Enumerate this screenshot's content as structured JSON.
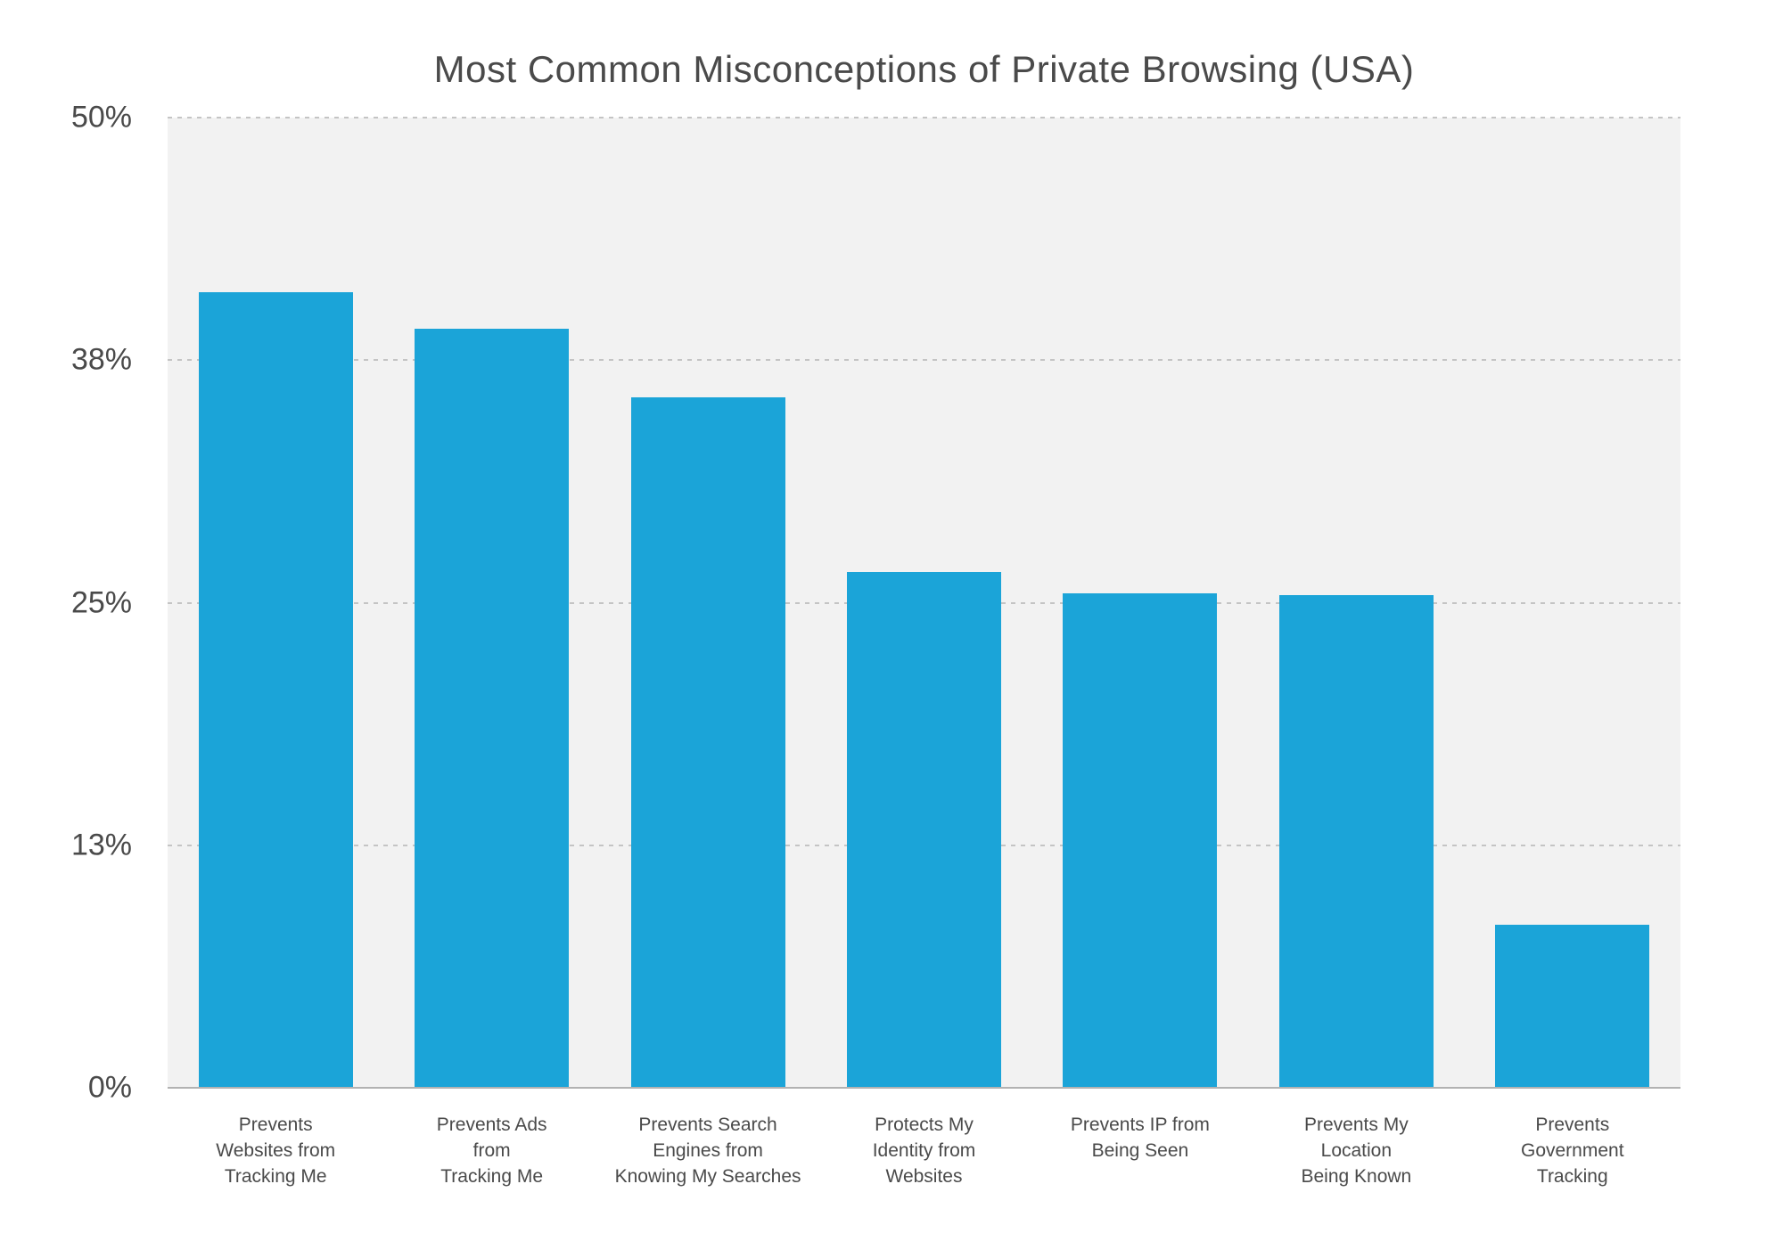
{
  "chart_data": {
    "type": "bar",
    "title": "Most Common Misconceptions of Private Browsing (USA)",
    "categories": [
      "Prevents Websites from Tracking Me",
      "Prevents Ads from Tracking Me",
      "Prevents Search Engines from Knowing My Searches",
      "Protects My Identity from Websites",
      "Prevents IP from Being Seen",
      "Prevents My Location Being Known",
      "Prevents Government Tracking"
    ],
    "category_lines": [
      [
        "Prevents",
        "Websites from",
        "Tracking Me"
      ],
      [
        "Prevents Ads",
        "from",
        "Tracking Me"
      ],
      [
        "Prevents Search",
        "Engines from",
        "Knowing My Searches"
      ],
      [
        "Protects My",
        "Identity from",
        "Websites"
      ],
      [
        "Prevents IP from",
        "Being Seen"
      ],
      [
        "Prevents My",
        "Location",
        "Being Known"
      ],
      [
        "Prevents",
        "Government",
        "Tracking"
      ]
    ],
    "values": [
      41.0,
      39.1,
      35.6,
      26.6,
      25.5,
      25.4,
      8.4
    ],
    "unit": "%",
    "xlabel": "",
    "ylabel": "",
    "ylim": [
      0,
      50
    ],
    "y_ticks": [
      {
        "label": "50%",
        "value": 50
      },
      {
        "label": "38%",
        "value": 37.5
      },
      {
        "label": "25%",
        "value": 25
      },
      {
        "label": "13%",
        "value": 12.5
      },
      {
        "label": "0%",
        "value": 0
      }
    ],
    "legend": "none",
    "grid": "horizontal-dashed",
    "colors": {
      "bar": "#1ba4d8",
      "plot_background": "#f2f2f2",
      "page_background": "#ffffff",
      "gridline": "#c4c4c4",
      "axis_line": "#b2b2b2",
      "text": "#4a4a4a"
    }
  }
}
